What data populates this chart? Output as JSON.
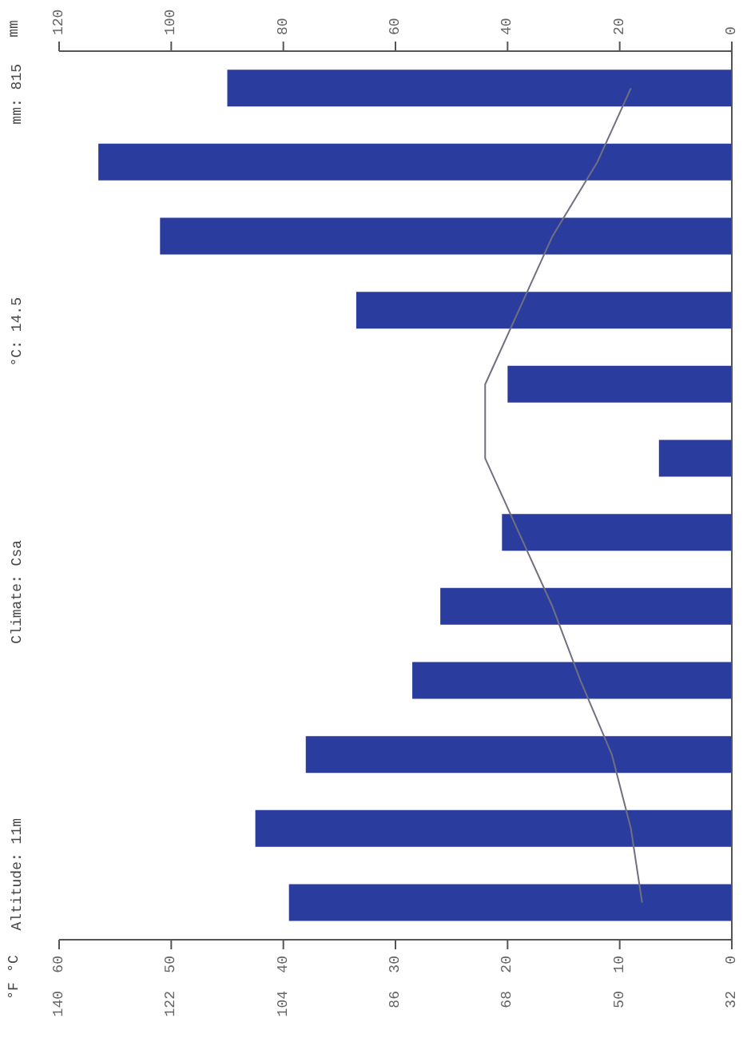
{
  "chart_data": {
    "type": "bar",
    "orientation": "horizontal",
    "annotations": [
      "Altitude: 11m",
      "Climate: Csa",
      "°C: 14.5",
      "mm: 815",
      {
        "text": "°C"
      },
      {
        "text": "°F"
      },
      "140",
      "122",
      "104",
      "86",
      "68",
      "50",
      "32"
    ],
    "x2label": "mm",
    "categories": [
      null,
      null,
      null,
      null,
      null,
      null,
      null,
      null,
      null,
      null,
      null,
      null
    ],
    "series": [
      {
        "axis": "x2",
        "color": "#2a3d9f",
        "values": [
          90,
          113,
          102,
          67,
          40,
          13,
          41,
          52,
          57,
          76,
          85,
          79
        ]
      },
      {
        "type": "line",
        "color": "#707080",
        "values": [
          9,
          12,
          16,
          19,
          22,
          22,
          19,
          16,
          13.5,
          10.7,
          9,
          8
        ]
      }
    ],
    "xlim": [
      60,
      0
    ],
    "xticks": [
      60,
      50,
      40,
      30,
      20,
      10,
      0
    ],
    "x2lim": [
      120,
      0
    ],
    "x2ticks": [
      120,
      100,
      80,
      60,
      40,
      20,
      0
    ],
    "grid": false,
    "legend": false,
    "marker": "none",
    "line_style": "solid"
  }
}
